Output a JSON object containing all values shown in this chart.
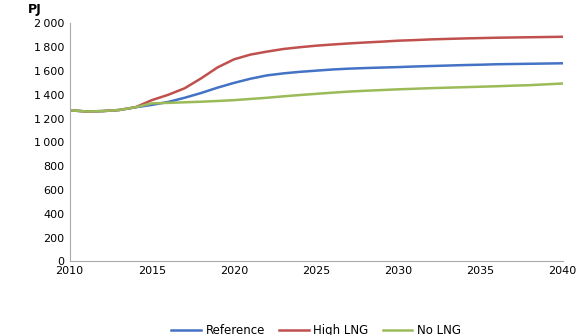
{
  "years": [
    2010,
    2011,
    2012,
    2013,
    2014,
    2015,
    2016,
    2017,
    2018,
    2019,
    2020,
    2021,
    2022,
    2023,
    2024,
    2025,
    2026,
    2027,
    2028,
    2029,
    2030,
    2031,
    2032,
    2033,
    2034,
    2035,
    2036,
    2037,
    2038,
    2039,
    2040
  ],
  "reference": [
    1270,
    1260,
    1263,
    1272,
    1295,
    1315,
    1340,
    1375,
    1415,
    1460,
    1500,
    1535,
    1563,
    1580,
    1593,
    1603,
    1613,
    1620,
    1625,
    1629,
    1633,
    1638,
    1642,
    1646,
    1650,
    1653,
    1657,
    1659,
    1661,
    1663,
    1665
  ],
  "high_lng": [
    1270,
    1260,
    1263,
    1272,
    1295,
    1355,
    1400,
    1455,
    1538,
    1630,
    1698,
    1738,
    1763,
    1785,
    1800,
    1813,
    1823,
    1832,
    1840,
    1847,
    1855,
    1860,
    1866,
    1870,
    1874,
    1877,
    1880,
    1882,
    1884,
    1886,
    1888
  ],
  "no_lng": [
    1270,
    1260,
    1263,
    1272,
    1295,
    1328,
    1332,
    1337,
    1342,
    1348,
    1355,
    1365,
    1375,
    1387,
    1398,
    1408,
    1418,
    1427,
    1434,
    1440,
    1446,
    1451,
    1456,
    1460,
    1464,
    1468,
    1472,
    1477,
    1481,
    1488,
    1495
  ],
  "colors": {
    "reference": "#4472C4",
    "high_lng": "#C0504D",
    "no_lng": "#9BBB59"
  },
  "ylim": [
    0,
    2000
  ],
  "yticks": [
    0,
    200,
    400,
    600,
    800,
    1000,
    1200,
    1400,
    1600,
    1800,
    2000
  ],
  "xlim": [
    2010,
    2040
  ],
  "xticks": [
    2010,
    2015,
    2020,
    2025,
    2030,
    2035,
    2040
  ],
  "ylabel": "PJ",
  "legend_labels": [
    "Reference",
    "High LNG",
    "No LNG"
  ],
  "line_width": 1.8,
  "background_color": "#ffffff"
}
